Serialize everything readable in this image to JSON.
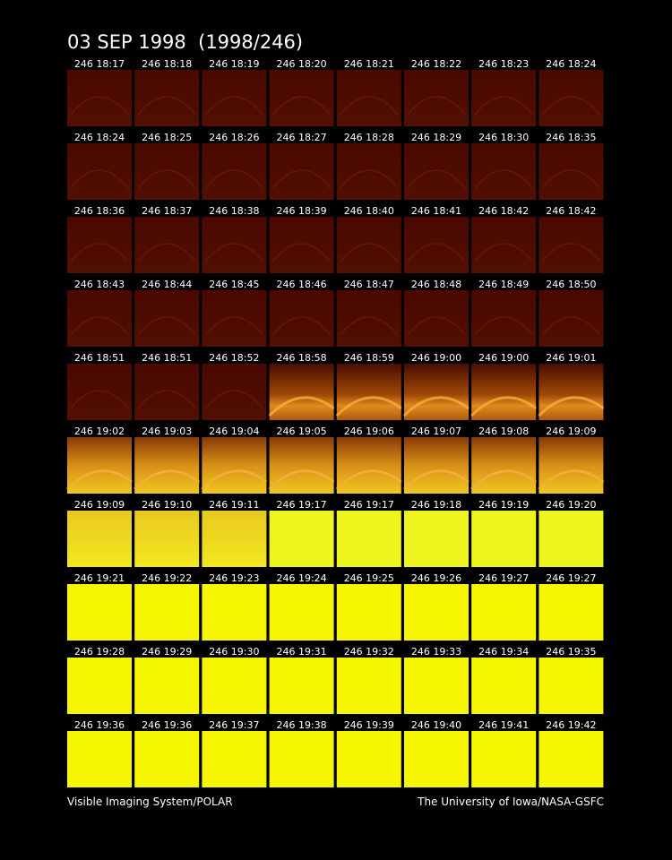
{
  "header": {
    "title": "03 SEP 1998  (1998/246)"
  },
  "rows": [
    [
      "246 18:17",
      "246 18:18",
      "246 18:19",
      "246 18:20",
      "246 18:21",
      "246 18:22",
      "246 18:23",
      "246 18:24"
    ],
    [
      "246 18:24",
      "246 18:25",
      "246 18:26",
      "246 18:27",
      "246 18:28",
      "246 18:29",
      "246 18:30",
      "246 18:35"
    ],
    [
      "246 18:36",
      "246 18:37",
      "246 18:38",
      "246 18:39",
      "246 18:40",
      "246 18:41",
      "246 18:42",
      "246 18:42"
    ],
    [
      "246 18:43",
      "246 18:44",
      "246 18:45",
      "246 18:46",
      "246 18:47",
      "246 18:48",
      "246 18:49",
      "246 18:50"
    ],
    [
      "246 18:51",
      "246 18:51",
      "246 18:52",
      "246 18:58",
      "246 18:59",
      "246 19:00",
      "246 19:00",
      "246 19:01"
    ],
    [
      "246 19:02",
      "246 19:03",
      "246 19:04",
      "246 19:05",
      "246 19:06",
      "246 19:07",
      "246 19:08",
      "246 19:09"
    ],
    [
      "246 19:09",
      "246 19:10",
      "246 19:11",
      "246 19:17",
      "246 19:17",
      "246 19:18",
      "246 19:19",
      "246 19:20"
    ],
    [
      "246 19:21",
      "246 19:22",
      "246 19:23",
      "246 19:24",
      "246 19:25",
      "246 19:26",
      "246 19:27",
      "246 19:27"
    ],
    [
      "246 19:28",
      "246 19:29",
      "246 19:30",
      "246 19:31",
      "246 19:32",
      "246 19:33",
      "246 19:34",
      "246 19:35"
    ],
    [
      "246 19:36",
      "246 19:36",
      "246 19:37",
      "246 19:38",
      "246 19:39",
      "246 19:40",
      "246 19:41",
      "246 19:42"
    ]
  ],
  "footer": {
    "left": "Visible Imaging System/POLAR",
    "right": "The University of Iowa/NASA-GSFC"
  }
}
